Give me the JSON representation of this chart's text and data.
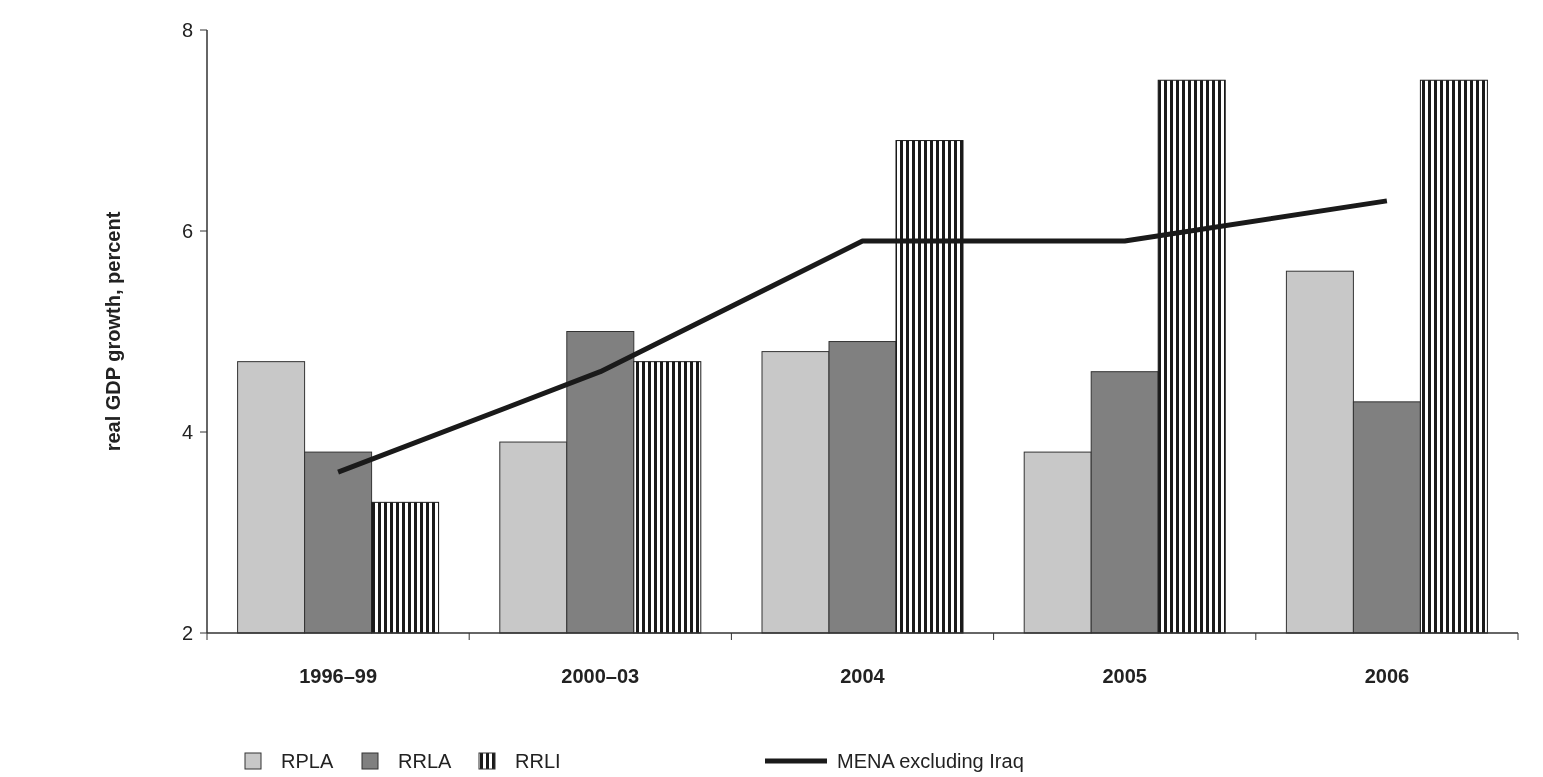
{
  "chart_data": {
    "type": "bar",
    "ylabel": "real GDP growth, percent",
    "categories": [
      "1996–99",
      "2000–03",
      "2004",
      "2005",
      "2006"
    ],
    "series": [
      {
        "name": "RPLA",
        "color": "#c8c8c8",
        "values": [
          4.7,
          3.9,
          4.8,
          3.8,
          5.6
        ]
      },
      {
        "name": "RRLA",
        "color": "#808080",
        "values": [
          3.8,
          5.0,
          4.9,
          4.6,
          4.3
        ]
      },
      {
        "name": "RRLI",
        "color": "#1a1a1a",
        "values": [
          3.3,
          4.7,
          6.9,
          7.5,
          7.5
        ]
      },
      {
        "name": "MENA excluding Iraq",
        "type": "line",
        "color": "#1a1a1a",
        "values": [
          3.6,
          4.6,
          5.9,
          5.9,
          6.3
        ]
      }
    ],
    "ylim": [
      2,
      8
    ],
    "yticks": [
      2,
      4,
      6,
      8
    ],
    "legend": "bottom",
    "grid": false
  }
}
